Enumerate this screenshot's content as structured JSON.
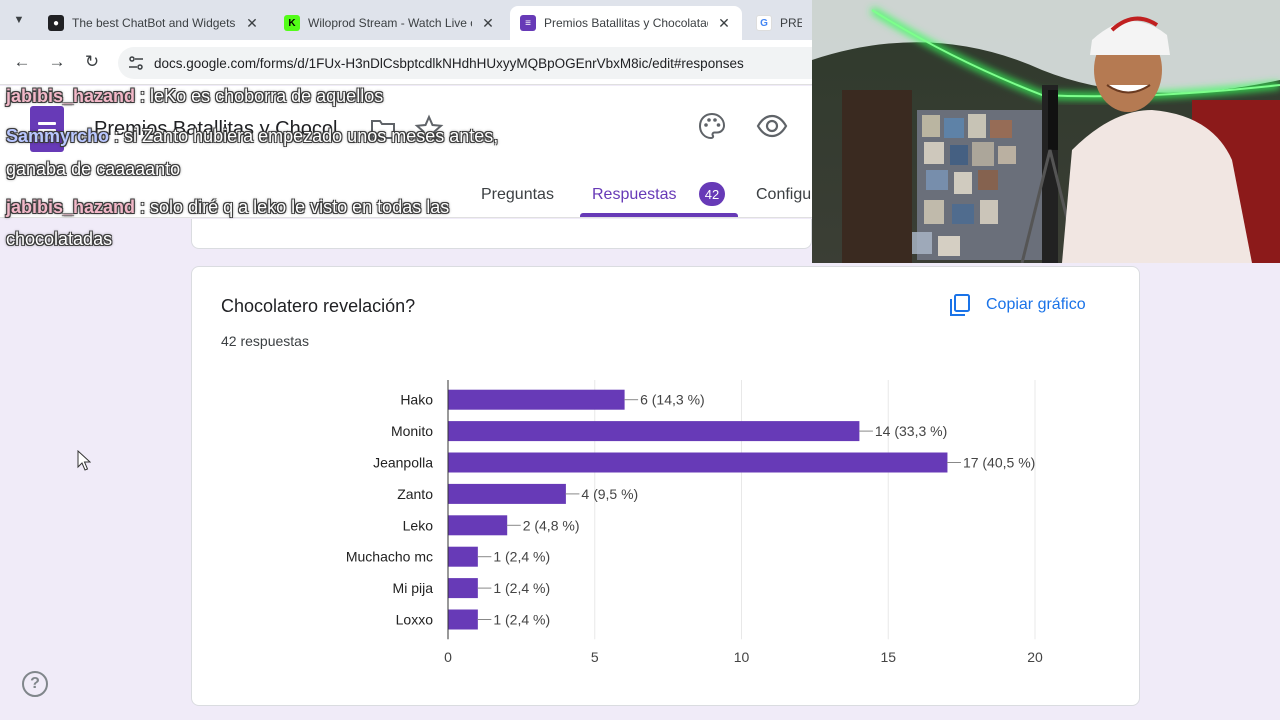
{
  "browser": {
    "tabs": [
      {
        "title": "The best ChatBot and Widgets"
      },
      {
        "title": "Wiloprod Stream - Watch Live o"
      },
      {
        "title": "Premios Batallitas y Chocolatad"
      },
      {
        "title": "PREMI"
      }
    ],
    "url": "docs.google.com/forms/d/1FUx-H3nDlCsbptcdlkNHdhHUxyyMQBpOGEnrVbxM8ic/edit#responses"
  },
  "form": {
    "title": "Premios Batallitas y Chocol",
    "tabs": {
      "preguntas": "Preguntas",
      "respuestas": "Respuestas",
      "respuestas_count": "42",
      "configuracion": "Configu"
    }
  },
  "question": {
    "title": "Chocolatero revelación?",
    "responses": "42 respuestas",
    "copy_label": "Copiar gráfico"
  },
  "chart_data": {
    "type": "bar",
    "orientation": "horizontal",
    "categories": [
      "Hako",
      "Monito",
      "Jeanpolla",
      "Zanto",
      "Leko",
      "Muchacho mc",
      "Mi pija",
      "Loxxo"
    ],
    "values": [
      6,
      14,
      17,
      4,
      2,
      1,
      1,
      1
    ],
    "data_labels": [
      "6 (14,3 %)",
      "14 (33,3 %)",
      "17 (40,5 %)",
      "4 (9,5 %)",
      "2 (4,8 %)",
      "1 (2,4 %)",
      "1 (2,4 %)",
      "1 (2,4 %)"
    ],
    "xlim": [
      0,
      20
    ],
    "xticks": [
      0,
      5,
      10,
      15,
      20
    ],
    "grid": true,
    "bar_color": "#673ab7"
  },
  "chat": [
    {
      "user": "jabibis_hazand",
      "message": " : leKo es choborra de aquellos",
      "continuation": ""
    },
    {
      "user": "Sammyrcho",
      "message": " : si Zanto hubiera empezado unos meses antes,",
      "continuation": "ganaba de caaaaanto"
    },
    {
      "user": "jabibis_hazand",
      "message": " : solo diré q a leko le visto en todas las",
      "continuation": "chocolatadas"
    }
  ],
  "colors": {
    "accent": "#673ab7",
    "link": "#1a73e8",
    "background": "#f0ebf8"
  }
}
